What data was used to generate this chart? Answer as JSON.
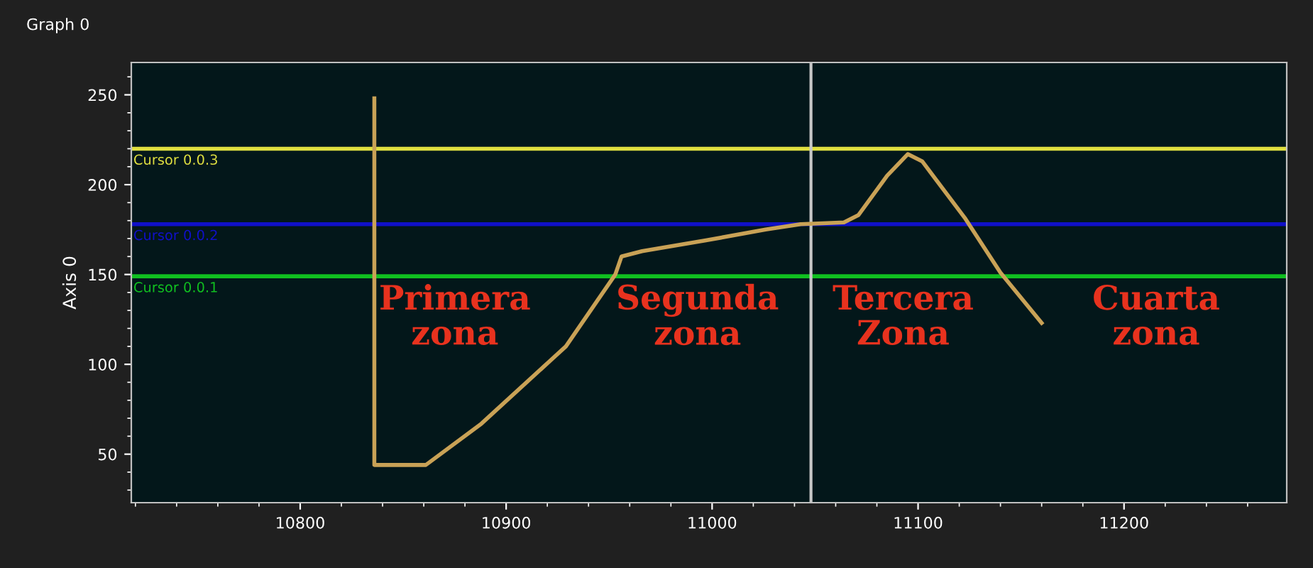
{
  "chart_data": {
    "type": "line",
    "title": "Graph 0",
    "ylabel": "Axis 0",
    "series": [
      {
        "color": "#c9a256",
        "x": [
          10836,
          10836,
          10838,
          10861,
          10888,
          10929,
          10953,
          10956,
          10966,
          10997,
          11026,
          11043,
          11064,
          11071,
          11085,
          11095,
          11102,
          11123,
          11140,
          11160
        ],
        "values": [
          248,
          44,
          44,
          44,
          67,
          110,
          150,
          160,
          163,
          169,
          175,
          178,
          179,
          183,
          205,
          217,
          213,
          181,
          151,
          123
        ]
      }
    ],
    "xlim": [
      10718,
      11279
    ],
    "ylim": [
      23,
      268
    ],
    "xticks": [
      10800,
      10900,
      11000,
      11100,
      11200
    ],
    "yticks": [
      50,
      100,
      150,
      200,
      250
    ],
    "ref_lines": [
      {
        "axis": "y",
        "value": 220,
        "label": "Cursor 0.0.3",
        "color": "#e0e040"
      },
      {
        "axis": "y",
        "value": 178,
        "label": "Cursor 0.0.2",
        "color": "#1010c8"
      },
      {
        "axis": "y",
        "value": 149,
        "label": "Cursor 0.0.1",
        "color": "#10c020"
      },
      {
        "axis": "x",
        "value": 11048,
        "label": null,
        "color": "#c8c8c8"
      }
    ],
    "annotations": [
      "Primera\nzona",
      "Segunda\nzona",
      "Tercera\nZona",
      "Cuarta\nzona"
    ],
    "grid": false,
    "legend": false,
    "marker": "none",
    "line_style": "solid"
  }
}
